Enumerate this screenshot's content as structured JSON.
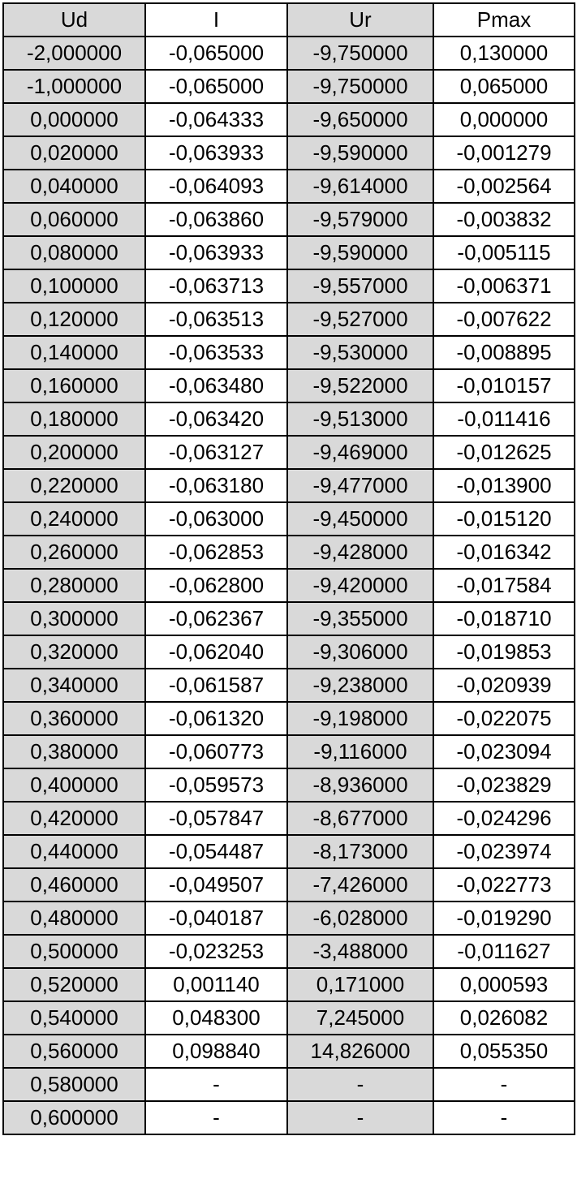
{
  "table": {
    "headers": [
      "Ud",
      "I",
      "Ur",
      "Pmax"
    ],
    "rows": [
      [
        "-2,000000",
        "-0,065000",
        "-9,750000",
        "0,130000"
      ],
      [
        "-1,000000",
        "-0,065000",
        "-9,750000",
        "0,065000"
      ],
      [
        "0,000000",
        "-0,064333",
        "-9,650000",
        "0,000000"
      ],
      [
        "0,020000",
        "-0,063933",
        "-9,590000",
        "-0,001279"
      ],
      [
        "0,040000",
        "-0,064093",
        "-9,614000",
        "-0,002564"
      ],
      [
        "0,060000",
        "-0,063860",
        "-9,579000",
        "-0,003832"
      ],
      [
        "0,080000",
        "-0,063933",
        "-9,590000",
        "-0,005115"
      ],
      [
        "0,100000",
        "-0,063713",
        "-9,557000",
        "-0,006371"
      ],
      [
        "0,120000",
        "-0,063513",
        "-9,527000",
        "-0,007622"
      ],
      [
        "0,140000",
        "-0,063533",
        "-9,530000",
        "-0,008895"
      ],
      [
        "0,160000",
        "-0,063480",
        "-9,522000",
        "-0,010157"
      ],
      [
        "0,180000",
        "-0,063420",
        "-9,513000",
        "-0,011416"
      ],
      [
        "0,200000",
        "-0,063127",
        "-9,469000",
        "-0,012625"
      ],
      [
        "0,220000",
        "-0,063180",
        "-9,477000",
        "-0,013900"
      ],
      [
        "0,240000",
        "-0,063000",
        "-9,450000",
        "-0,015120"
      ],
      [
        "0,260000",
        "-0,062853",
        "-9,428000",
        "-0,016342"
      ],
      [
        "0,280000",
        "-0,062800",
        "-9,420000",
        "-0,017584"
      ],
      [
        "0,300000",
        "-0,062367",
        "-9,355000",
        "-0,018710"
      ],
      [
        "0,320000",
        "-0,062040",
        "-9,306000",
        "-0,019853"
      ],
      [
        "0,340000",
        "-0,061587",
        "-9,238000",
        "-0,020939"
      ],
      [
        "0,360000",
        "-0,061320",
        "-9,198000",
        "-0,022075"
      ],
      [
        "0,380000",
        "-0,060773",
        "-9,116000",
        "-0,023094"
      ],
      [
        "0,400000",
        "-0,059573",
        "-8,936000",
        "-0,023829"
      ],
      [
        "0,420000",
        "-0,057847",
        "-8,677000",
        "-0,024296"
      ],
      [
        "0,440000",
        "-0,054487",
        "-8,173000",
        "-0,023974"
      ],
      [
        "0,460000",
        "-0,049507",
        "-7,426000",
        "-0,022773"
      ],
      [
        "0,480000",
        "-0,040187",
        "-6,028000",
        "-0,019290"
      ],
      [
        "0,500000",
        "-0,023253",
        "-3,488000",
        "-0,011627"
      ],
      [
        "0,520000",
        "0,001140",
        "0,171000",
        "0,000593"
      ],
      [
        "0,540000",
        "0,048300",
        "7,245000",
        "0,026082"
      ],
      [
        "0,560000",
        "0,098840",
        "14,826000",
        "0,055350"
      ],
      [
        "0,580000",
        "-",
        "-",
        "-"
      ],
      [
        "0,600000",
        "-",
        "-",
        "-"
      ]
    ]
  },
  "colors": {
    "shaded_cell": "#d9d9d9",
    "plain_cell": "#ffffff",
    "border": "#000000"
  }
}
